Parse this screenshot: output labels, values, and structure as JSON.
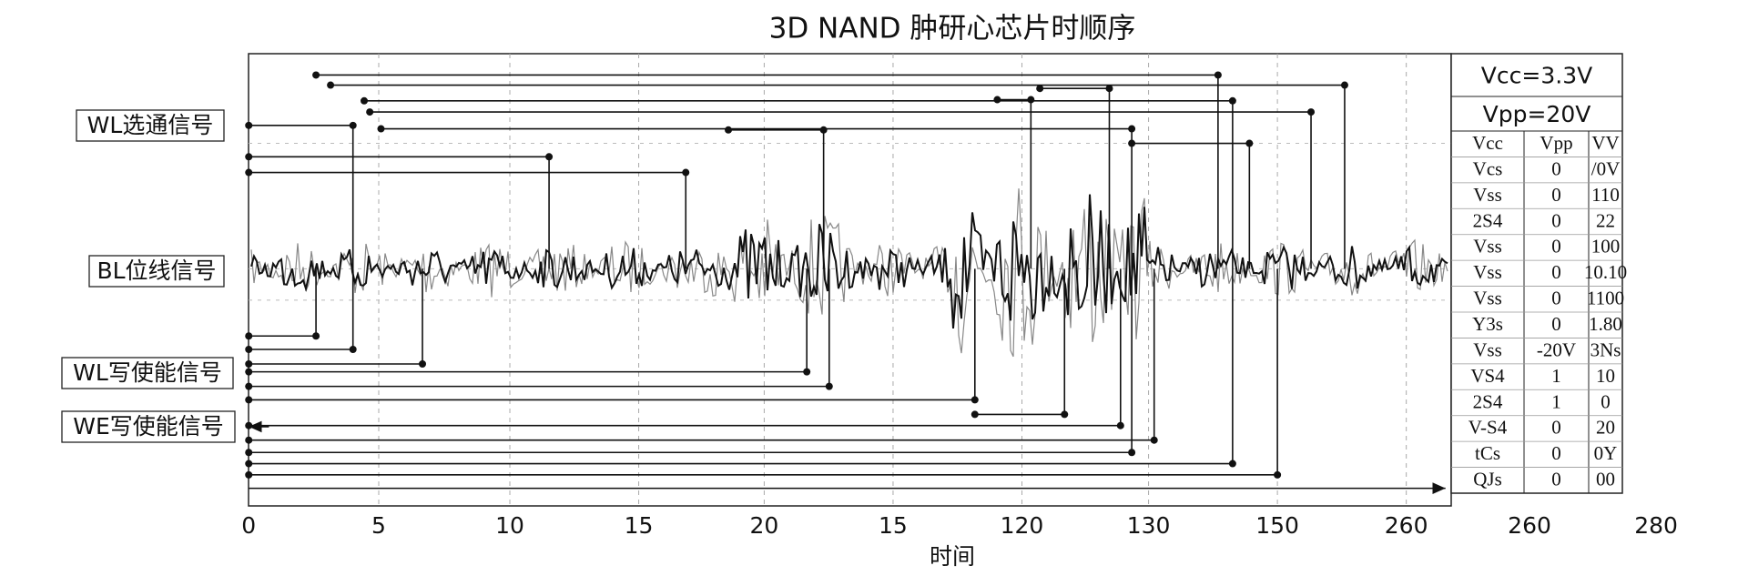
{
  "title": "3D NAND 肿研心芯片时顺序",
  "signals": [
    "WL选通信号",
    "BL位线信号",
    "WL写使能信号",
    "WE写使能信号"
  ],
  "x_axis": {
    "label": "时间",
    "ticks": [
      "0",
      "5",
      "10",
      "15",
      "20",
      "15",
      "120",
      "130",
      "150",
      "260",
      "260",
      "280"
    ]
  },
  "table": {
    "header": [
      "Vcc=3.3V",
      "Vpp=20V"
    ],
    "rows": [
      [
        "Vcc",
        "Vpp",
        "VV"
      ],
      [
        "Vcs",
        "0",
        "/0V"
      ],
      [
        "Vss",
        "0",
        "110"
      ],
      [
        "2S4",
        "0",
        "22"
      ],
      [
        "Vss",
        "0",
        "100"
      ],
      [
        "Vss",
        "0",
        "10.10"
      ],
      [
        "Vss",
        "0",
        "1100"
      ],
      [
        "Y3s",
        "0",
        "1.80"
      ],
      [
        "Vss",
        "-20V",
        "3Ns"
      ],
      [
        "VS4",
        "1",
        "10"
      ],
      [
        "2S4",
        "1",
        "0"
      ],
      [
        "V-S4",
        "0",
        "20"
      ],
      [
        "tCs",
        "0",
        "0Y"
      ],
      [
        "QJs",
        "0",
        "00"
      ]
    ]
  }
}
